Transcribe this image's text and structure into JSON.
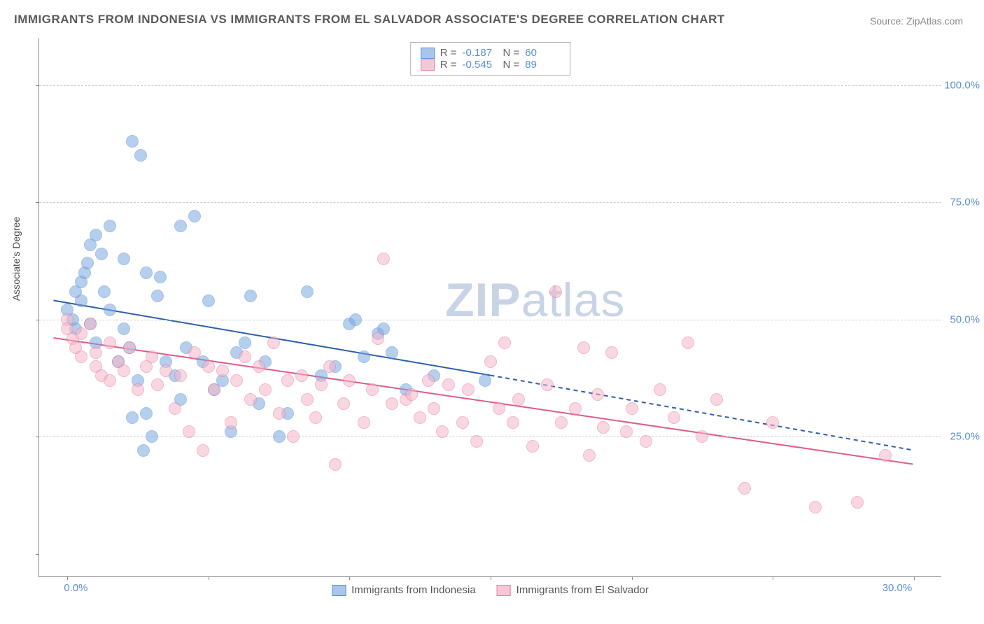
{
  "title": "IMMIGRANTS FROM INDONESIA VS IMMIGRANTS FROM EL SALVADOR ASSOCIATE'S DEGREE CORRELATION CHART",
  "source": "Source: ZipAtlas.com",
  "ylabel": "Associate's Degree",
  "watermark_bold": "ZIP",
  "watermark_rest": "atlas",
  "chart": {
    "type": "scatter",
    "background_color": "#ffffff",
    "grid_color": "#cccccc",
    "axis_color": "#888888",
    "label_color": "#5b8fd6",
    "xlim": [
      -1,
      31
    ],
    "ylim": [
      -5,
      110
    ],
    "xtick_labels": [
      {
        "pos": 0,
        "label": "0.0%"
      },
      {
        "pos": 30,
        "label": "30.0%"
      }
    ],
    "ytick_labels": [
      {
        "pos": 25,
        "label": "25.0%"
      },
      {
        "pos": 50,
        "label": "50.0%"
      },
      {
        "pos": 75,
        "label": "75.0%"
      },
      {
        "pos": 100,
        "label": "100.0%"
      }
    ],
    "xtick_marks": [
      0,
      5,
      10,
      15,
      20,
      25,
      30
    ],
    "ytick_marks": [
      0,
      25,
      50,
      75,
      100
    ],
    "marker_radius": 9,
    "marker_opacity": 0.55,
    "series": [
      {
        "name": "Immigrants from Indonesia",
        "color": "#7aa8e0",
        "border": "#5b8fd6",
        "R": "-0.187",
        "N": "60",
        "trendline": {
          "solid": {
            "x1": -0.5,
            "y1": 54,
            "x2": 15,
            "y2": 38
          },
          "dashed": {
            "x1": 15,
            "y1": 38,
            "x2": 30,
            "y2": 22
          },
          "color": "#2e5fa8",
          "width": 2
        },
        "points": [
          [
            0,
            52
          ],
          [
            0.2,
            50
          ],
          [
            0.3,
            48
          ],
          [
            0.3,
            56
          ],
          [
            0.5,
            58
          ],
          [
            0.5,
            54
          ],
          [
            0.6,
            60
          ],
          [
            0.7,
            62
          ],
          [
            0.8,
            66
          ],
          [
            0.8,
            49
          ],
          [
            1,
            68
          ],
          [
            1,
            45
          ],
          [
            1.2,
            64
          ],
          [
            1.3,
            56
          ],
          [
            1.5,
            70
          ],
          [
            1.5,
            52
          ],
          [
            1.8,
            41
          ],
          [
            2,
            63
          ],
          [
            2,
            48
          ],
          [
            2.2,
            44
          ],
          [
            2.3,
            88
          ],
          [
            2.3,
            29
          ],
          [
            2.5,
            37
          ],
          [
            2.6,
            85
          ],
          [
            2.7,
            22
          ],
          [
            2.8,
            30
          ],
          [
            2.8,
            60
          ],
          [
            3,
            25
          ],
          [
            3.2,
            55
          ],
          [
            3.3,
            59
          ],
          [
            3.5,
            41
          ],
          [
            3.8,
            38
          ],
          [
            4,
            70
          ],
          [
            4,
            33
          ],
          [
            4.2,
            44
          ],
          [
            4.5,
            72
          ],
          [
            4.8,
            41
          ],
          [
            5,
            54
          ],
          [
            5.2,
            35
          ],
          [
            5.5,
            37
          ],
          [
            5.8,
            26
          ],
          [
            6,
            43
          ],
          [
            6.3,
            45
          ],
          [
            6.5,
            55
          ],
          [
            6.8,
            32
          ],
          [
            7,
            41
          ],
          [
            7.5,
            25
          ],
          [
            7.8,
            30
          ],
          [
            8.5,
            56
          ],
          [
            9,
            38
          ],
          [
            9.5,
            40
          ],
          [
            10,
            49
          ],
          [
            10.2,
            50
          ],
          [
            10.5,
            42
          ],
          [
            11,
            47
          ],
          [
            11.2,
            48
          ],
          [
            11.5,
            43
          ],
          [
            12,
            35
          ],
          [
            13,
            38
          ],
          [
            14.8,
            37
          ]
        ]
      },
      {
        "name": "Immigrants from El Salvador",
        "color": "#f5b8c8",
        "border": "#e87ca3",
        "R": "-0.545",
        "N": "89",
        "trendline": {
          "solid": {
            "x1": -0.5,
            "y1": 46,
            "x2": 30,
            "y2": 19
          },
          "dashed": null,
          "color": "#e05a8a",
          "width": 2
        },
        "points": [
          [
            0,
            50
          ],
          [
            0,
            48
          ],
          [
            0.2,
            46
          ],
          [
            0.3,
            44
          ],
          [
            0.5,
            47
          ],
          [
            0.5,
            42
          ],
          [
            0.8,
            49
          ],
          [
            1,
            43
          ],
          [
            1,
            40
          ],
          [
            1.2,
            38
          ],
          [
            1.5,
            45
          ],
          [
            1.5,
            37
          ],
          [
            1.8,
            41
          ],
          [
            2,
            39
          ],
          [
            2.2,
            44
          ],
          [
            2.5,
            35
          ],
          [
            2.8,
            40
          ],
          [
            3,
            42
          ],
          [
            3.2,
            36
          ],
          [
            3.5,
            39
          ],
          [
            3.8,
            31
          ],
          [
            4,
            38
          ],
          [
            4.3,
            26
          ],
          [
            4.5,
            43
          ],
          [
            4.8,
            22
          ],
          [
            5,
            40
          ],
          [
            5.2,
            35
          ],
          [
            5.5,
            39
          ],
          [
            5.8,
            28
          ],
          [
            6,
            37
          ],
          [
            6.3,
            42
          ],
          [
            6.5,
            33
          ],
          [
            6.8,
            40
          ],
          [
            7,
            35
          ],
          [
            7.3,
            45
          ],
          [
            7.5,
            30
          ],
          [
            7.8,
            37
          ],
          [
            8,
            25
          ],
          [
            8.3,
            38
          ],
          [
            8.5,
            33
          ],
          [
            8.8,
            29
          ],
          [
            9,
            36
          ],
          [
            9.3,
            40
          ],
          [
            9.5,
            19
          ],
          [
            9.8,
            32
          ],
          [
            10,
            37
          ],
          [
            10.5,
            28
          ],
          [
            10.8,
            35
          ],
          [
            11,
            46
          ],
          [
            11.2,
            63
          ],
          [
            11.5,
            32
          ],
          [
            12,
            33
          ],
          [
            12.2,
            34
          ],
          [
            12.5,
            29
          ],
          [
            12.8,
            37
          ],
          [
            13,
            31
          ],
          [
            13.3,
            26
          ],
          [
            13.5,
            36
          ],
          [
            14,
            28
          ],
          [
            14.2,
            35
          ],
          [
            14.5,
            24
          ],
          [
            15,
            41
          ],
          [
            15.3,
            31
          ],
          [
            15.5,
            45
          ],
          [
            15.8,
            28
          ],
          [
            16,
            33
          ],
          [
            16.5,
            23
          ],
          [
            17,
            36
          ],
          [
            17.3,
            56
          ],
          [
            17.5,
            28
          ],
          [
            18,
            31
          ],
          [
            18.3,
            44
          ],
          [
            18.5,
            21
          ],
          [
            18.8,
            34
          ],
          [
            19,
            27
          ],
          [
            19.3,
            43
          ],
          [
            19.8,
            26
          ],
          [
            20,
            31
          ],
          [
            20.5,
            24
          ],
          [
            21,
            35
          ],
          [
            21.5,
            29
          ],
          [
            22,
            45
          ],
          [
            22.5,
            25
          ],
          [
            23,
            33
          ],
          [
            24,
            14
          ],
          [
            25,
            28
          ],
          [
            26.5,
            10
          ],
          [
            28,
            11
          ],
          [
            29,
            21
          ]
        ]
      }
    ]
  },
  "legend": [
    {
      "label": "Immigrants from Indonesia",
      "fill": "#a8c5ec",
      "border": "#5b8fd6"
    },
    {
      "label": "Immigrants from El Salvador",
      "fill": "#f5c8d5",
      "border": "#e87ca3"
    }
  ],
  "stats": [
    {
      "fill": "#a8c5ec",
      "border": "#5b8fd6",
      "R": "-0.187",
      "N": "60"
    },
    {
      "fill": "#f5c8d5",
      "border": "#e87ca3",
      "R": "-0.545",
      "N": "89"
    }
  ]
}
